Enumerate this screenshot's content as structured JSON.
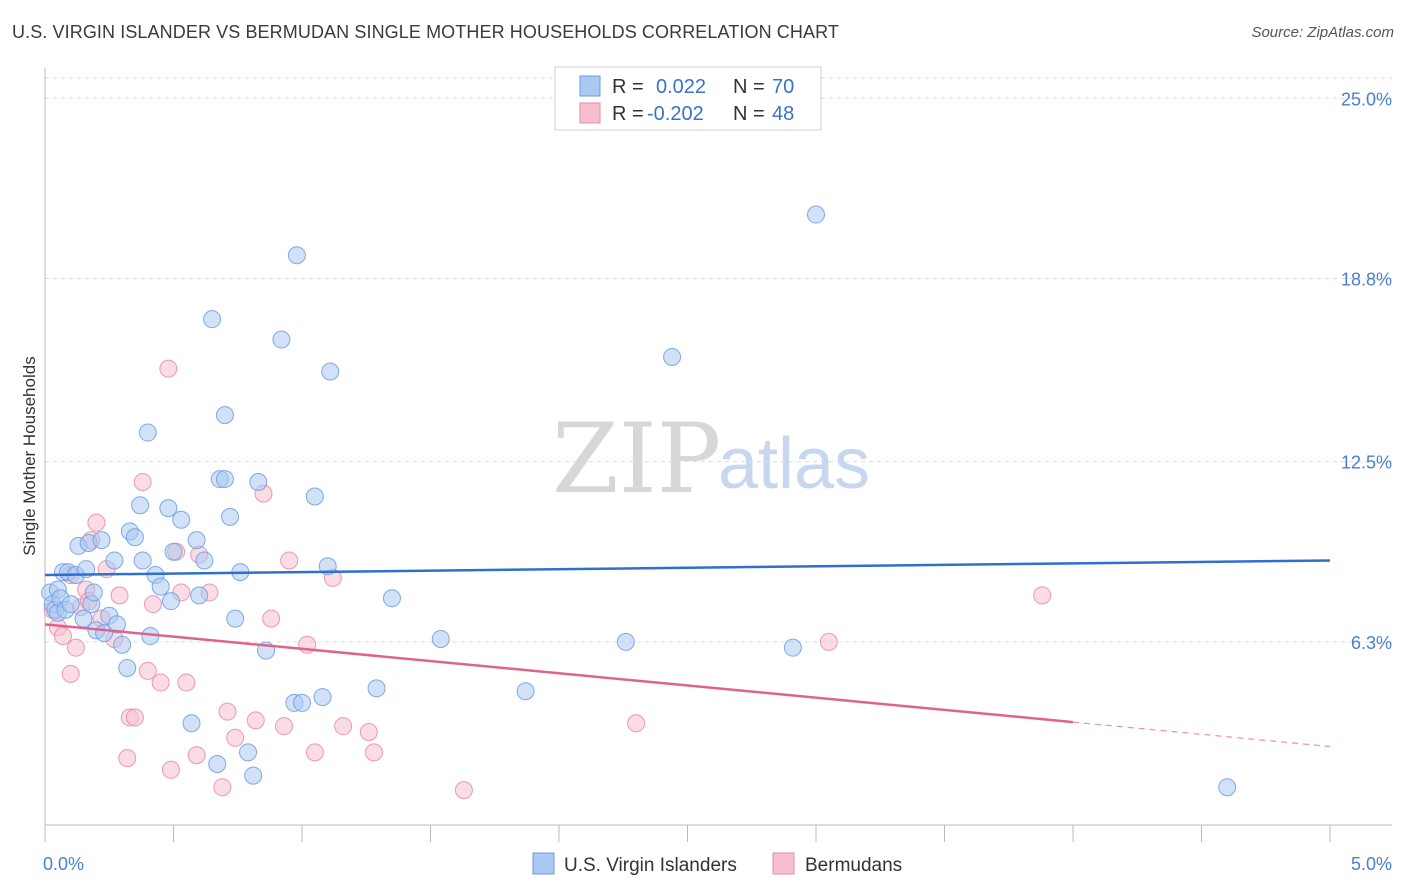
{
  "header": {
    "title": "U.S. VIRGIN ISLANDER VS BERMUDAN SINGLE MOTHER HOUSEHOLDS CORRELATION CHART",
    "source": "Source: ZipAtlas.com"
  },
  "watermark": {
    "zip": "ZIP",
    "atlas": "atlas"
  },
  "colors": {
    "blue_fill": "#a9c8f2",
    "blue_stroke": "#6b9de0",
    "blue_line": "#2f6fd0",
    "pink_fill": "#f6bfd0",
    "pink_stroke": "#e88aa8",
    "pink_line": "#e0638f",
    "grid": "#dcdcdc",
    "axis_text": "#4a7fd0"
  },
  "legend": {
    "rows": [
      {
        "r_label": "R =",
        "r_value": "0.022",
        "n_label": "N =",
        "n_value": "70"
      },
      {
        "r_label": "R =",
        "r_value": "-0.202",
        "n_label": "N =",
        "n_value": "48"
      }
    ]
  },
  "bottom_legend": {
    "blue": "U.S. Virgin Islanders",
    "pink": "Bermudans"
  },
  "chart_data": {
    "type": "scatter",
    "title": "U.S. VIRGIN ISLANDER VS BERMUDAN SINGLE MOTHER HOUSEHOLDS CORRELATION CHART",
    "xlabel": "",
    "ylabel": "Single Mother Households",
    "xlim": [
      0,
      5
    ],
    "ylim": [
      0,
      25.8
    ],
    "x_tick_labels": [
      "0.0%",
      "5.0%"
    ],
    "y_ticks": [
      6.3,
      12.5,
      18.8,
      25.0
    ],
    "y_tick_labels": [
      "6.3%",
      "12.5%",
      "18.8%",
      "25.0%"
    ],
    "grid": true,
    "series": [
      {
        "name": "U.S. Virgin Islanders",
        "color": "#a9c8f2",
        "trend": {
          "x": [
            0,
            5
          ],
          "y": [
            8.6,
            9.1
          ],
          "dashed_from": null
        },
        "points": [
          [
            0.02,
            8.0
          ],
          [
            0.03,
            7.6
          ],
          [
            0.04,
            7.4
          ],
          [
            0.05,
            8.1
          ],
          [
            0.05,
            7.3
          ],
          [
            0.06,
            7.8
          ],
          [
            0.07,
            8.7
          ],
          [
            0.08,
            7.4
          ],
          [
            0.09,
            8.7
          ],
          [
            0.1,
            7.6
          ],
          [
            0.12,
            8.6
          ],
          [
            0.13,
            9.6
          ],
          [
            0.15,
            7.1
          ],
          [
            0.16,
            8.8
          ],
          [
            0.17,
            9.7
          ],
          [
            0.18,
            7.6
          ],
          [
            0.19,
            8.0
          ],
          [
            0.2,
            6.7
          ],
          [
            0.22,
            9.8
          ],
          [
            0.23,
            6.6
          ],
          [
            0.25,
            7.2
          ],
          [
            0.27,
            9.1
          ],
          [
            0.28,
            6.9
          ],
          [
            0.3,
            6.2
          ],
          [
            0.32,
            5.4
          ],
          [
            0.33,
            10.1
          ],
          [
            0.35,
            9.9
          ],
          [
            0.37,
            11.0
          ],
          [
            0.38,
            9.1
          ],
          [
            0.4,
            13.5
          ],
          [
            0.41,
            6.5
          ],
          [
            0.43,
            8.6
          ],
          [
            0.45,
            8.2
          ],
          [
            0.48,
            10.9
          ],
          [
            0.49,
            7.7
          ],
          [
            0.5,
            9.4
          ],
          [
            0.53,
            10.5
          ],
          [
            0.57,
            3.5
          ],
          [
            0.59,
            9.8
          ],
          [
            0.6,
            7.9
          ],
          [
            0.62,
            9.1
          ],
          [
            0.65,
            17.4
          ],
          [
            0.67,
            2.1
          ],
          [
            0.68,
            11.9
          ],
          [
            0.7,
            11.9
          ],
          [
            0.7,
            14.1
          ],
          [
            0.72,
            10.6
          ],
          [
            0.74,
            7.1
          ],
          [
            0.76,
            8.7
          ],
          [
            0.79,
            2.5
          ],
          [
            0.81,
            1.7
          ],
          [
            0.83,
            11.8
          ],
          [
            0.86,
            6.0
          ],
          [
            0.92,
            16.7
          ],
          [
            0.97,
            4.2
          ],
          [
            0.98,
            19.6
          ],
          [
            1.0,
            4.2
          ],
          [
            1.05,
            11.3
          ],
          [
            1.08,
            4.4
          ],
          [
            1.1,
            8.9
          ],
          [
            1.11,
            15.6
          ],
          [
            1.29,
            4.7
          ],
          [
            1.35,
            7.8
          ],
          [
            1.54,
            6.4
          ],
          [
            1.87,
            4.6
          ],
          [
            2.26,
            6.3
          ],
          [
            2.44,
            16.1
          ],
          [
            2.91,
            6.1
          ],
          [
            3.0,
            21.0
          ],
          [
            4.6,
            1.3
          ]
        ]
      },
      {
        "name": "Bermudans",
        "color": "#f6bfd0",
        "trend": {
          "x": [
            0,
            5
          ],
          "y": [
            6.9,
            2.7
          ],
          "dashed_from": 4.0
        },
        "points": [
          [
            0.03,
            7.4
          ],
          [
            0.05,
            6.8
          ],
          [
            0.07,
            6.5
          ],
          [
            0.1,
            8.6
          ],
          [
            0.12,
            6.1
          ],
          [
            0.14,
            7.5
          ],
          [
            0.16,
            8.1
          ],
          [
            0.17,
            7.7
          ],
          [
            0.18,
            9.8
          ],
          [
            0.2,
            10.4
          ],
          [
            0.22,
            7.1
          ],
          [
            0.24,
            8.8
          ],
          [
            0.27,
            6.4
          ],
          [
            0.29,
            7.9
          ],
          [
            0.32,
            2.3
          ],
          [
            0.33,
            3.7
          ],
          [
            0.35,
            3.7
          ],
          [
            0.38,
            11.8
          ],
          [
            0.4,
            5.3
          ],
          [
            0.42,
            7.6
          ],
          [
            0.45,
            4.9
          ],
          [
            0.48,
            15.7
          ],
          [
            0.49,
            1.9
          ],
          [
            0.51,
            9.4
          ],
          [
            0.53,
            8.0
          ],
          [
            0.55,
            4.9
          ],
          [
            0.59,
            2.4
          ],
          [
            0.64,
            8.0
          ],
          [
            0.69,
            1.3
          ],
          [
            0.71,
            3.9
          ],
          [
            0.74,
            3.0
          ],
          [
            0.82,
            3.6
          ],
          [
            0.85,
            11.4
          ],
          [
            0.88,
            7.1
          ],
          [
            0.93,
            3.4
          ],
          [
            0.95,
            9.1
          ],
          [
            1.02,
            6.2
          ],
          [
            1.05,
            2.5
          ],
          [
            1.12,
            8.5
          ],
          [
            1.16,
            3.4
          ],
          [
            1.26,
            3.2
          ],
          [
            1.28,
            2.5
          ],
          [
            1.63,
            1.2
          ],
          [
            2.3,
            3.5
          ],
          [
            3.05,
            6.3
          ],
          [
            3.88,
            7.9
          ],
          [
            0.1,
            5.2
          ],
          [
            0.6,
            9.3
          ]
        ]
      }
    ]
  }
}
